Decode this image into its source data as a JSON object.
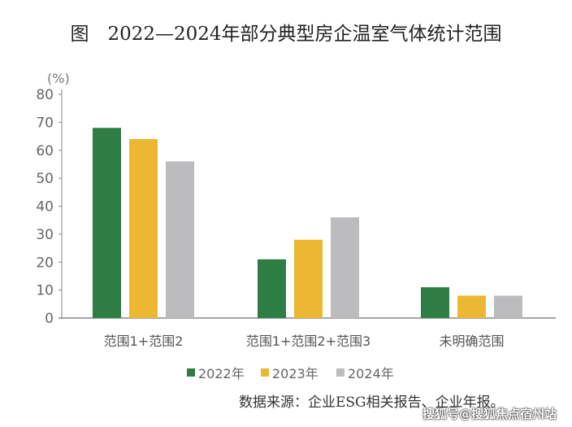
{
  "chart_data": {
    "type": "bar",
    "title": "图　2022—2024年部分典型房企温室气体统计范围",
    "ylabel": "(%)",
    "ylim": [
      0,
      80
    ],
    "yticks": [
      0,
      10,
      20,
      30,
      40,
      50,
      60,
      70,
      80
    ],
    "categories": [
      "范围1+范围2",
      "范围1+范围2+范围3",
      "未明确范围"
    ],
    "series": [
      {
        "name": "2022年",
        "color": "#2e7d45",
        "values": [
          68,
          21,
          11
        ]
      },
      {
        "name": "2023年",
        "color": "#ecb833",
        "values": [
          64,
          28,
          8
        ]
      },
      {
        "name": "2024年",
        "color": "#bcbcbe",
        "values": [
          56,
          36,
          8
        ]
      }
    ],
    "legend": "bottom",
    "grid": false
  },
  "source": "数据来源：企业ESG相关报告、企业年报。",
  "watermark": "搜狐号@搜狐焦点宿州站"
}
